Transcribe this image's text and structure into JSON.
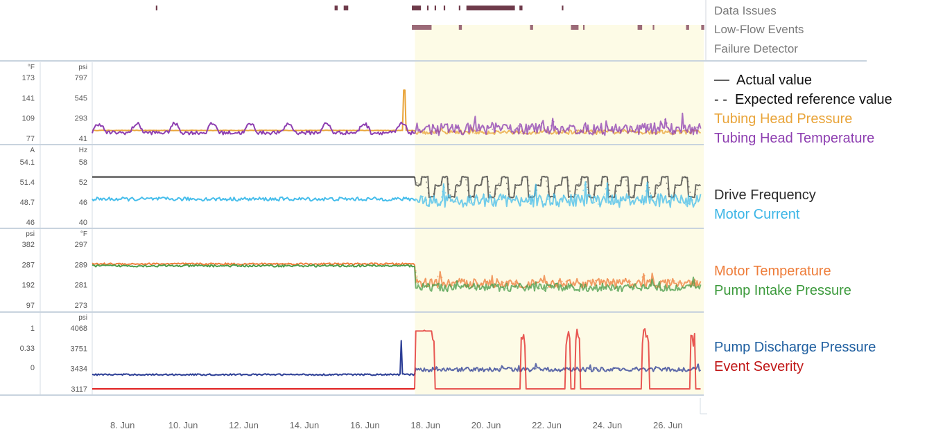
{
  "chart_data": {
    "type": "line",
    "x_ticks": [
      "8. Jun",
      "10. Jun",
      "12. Jun",
      "14. Jun",
      "16. Jun",
      "18. Jun",
      "20. Jun",
      "22. Jun",
      "24. Jun",
      "26. Jun"
    ],
    "x_range": [
      "7 Jun",
      "27 Jun"
    ],
    "highlight_period": {
      "start_day": 17.65,
      "end_day": 27.5,
      "color": "#fdfbe6"
    },
    "event_tracks": [
      {
        "name": "Data Issues",
        "color": "#6e3a4a",
        "intervals": [
          [
            9.1,
            9.15
          ],
          [
            15.0,
            15.1
          ],
          [
            15.3,
            15.45
          ],
          [
            17.55,
            17.85
          ],
          [
            18.05,
            18.1
          ],
          [
            18.3,
            18.35
          ],
          [
            18.6,
            18.65
          ],
          [
            19.1,
            19.15
          ],
          [
            19.35,
            20.95
          ],
          [
            21.1,
            21.2
          ],
          [
            22.5,
            22.55
          ]
        ]
      },
      {
        "name": "Low-Flow Events",
        "color": "#9b6a78",
        "intervals": [
          [
            17.55,
            18.2
          ],
          [
            19.1,
            19.2
          ],
          [
            21.45,
            21.55
          ],
          [
            22.8,
            23.05
          ],
          [
            23.2,
            23.25
          ],
          [
            25.0,
            25.15
          ],
          [
            25.5,
            25.55
          ],
          [
            26.6,
            26.7
          ],
          [
            27.1,
            27.2
          ]
        ]
      },
      {
        "name": "Failure Detector",
        "color": "#9b6a78",
        "intervals": []
      }
    ],
    "panels": [
      {
        "id": "tubing",
        "left_axis": {
          "unit": "°F",
          "ticks": [
            "173",
            "141",
            "109",
            "77"
          ],
          "range": [
            77,
            173
          ]
        },
        "right_axis": {
          "unit": "psi",
          "ticks": [
            "797",
            "545",
            "293",
            "41"
          ],
          "range": [
            41,
            797
          ]
        },
        "series": [
          {
            "name": "Tubing Head Pressure",
            "color": "#e9a53b",
            "axis": "right",
            "baseline": 140,
            "noise_before": 2,
            "noise_after": 28,
            "after_level": 120,
            "spike": {
              "day": 17.3,
              "value": 640
            }
          },
          {
            "name": "Tubing Head Temperature",
            "color": "#8e3fb1",
            "axis": "left",
            "baseline": 86,
            "noise_before": 3,
            "noise_after": 9,
            "after_level": 92,
            "daily_bumps": 8
          }
        ]
      },
      {
        "id": "drive",
        "left_axis": {
          "unit": "A",
          "ticks": [
            "54.1",
            "51.4",
            "48.7",
            "46"
          ],
          "range": [
            46,
            54.1
          ]
        },
        "right_axis": {
          "unit": "Hz",
          "ticks": [
            "58",
            "52",
            "46",
            "40"
          ],
          "range": [
            40,
            58
          ]
        },
        "series": [
          {
            "name": "Drive Frequency",
            "color": "#3d3d3d",
            "axis": "right",
            "baseline": 53.5,
            "after_levels": [
              51,
              53.5,
              47.5
            ]
          },
          {
            "name": "Motor Current",
            "color": "#45bdeb",
            "axis": "left",
            "baseline": 49.1,
            "noise_before": 0.25,
            "noise_after": 0.9,
            "after_level": 48.9
          }
        ]
      },
      {
        "id": "motor",
        "left_axis": {
          "unit": "psi",
          "ticks": [
            "382",
            "287",
            "192",
            "97"
          ],
          "range": [
            97,
            382
          ]
        },
        "right_axis": {
          "unit": "°F",
          "ticks": [
            "297",
            "289",
            "281",
            "273"
          ],
          "range": [
            273,
            297
          ]
        },
        "series": [
          {
            "name": "Motor Temperature",
            "color": "#ee7d3a",
            "axis": "left",
            "baseline": 290,
            "noise_before": 4,
            "noise_after": 22,
            "after_level": 200
          },
          {
            "name": "Pump Intake Pressure",
            "color": "#4a9c4a",
            "axis": "right",
            "baseline": 288.5,
            "noise_before": 0.4,
            "noise_after": 1.6,
            "after_level": 280
          }
        ]
      },
      {
        "id": "pump",
        "left_axis": {
          "unit": "",
          "ticks": [
            "1",
            "0.33",
            "0"
          ],
          "range": [
            0,
            1
          ],
          "color": "#e03030"
        },
        "right_axis": {
          "unit": "psi",
          "ticks": [
            "4068",
            "3751",
            "3434",
            "3117"
          ],
          "range": [
            3117,
            4068
          ]
        },
        "series": [
          {
            "name": "Pump Discharge Pressure",
            "color": "#2c3e96",
            "axis": "right",
            "baseline": 3340,
            "noise_before": 12,
            "noise_after": 35,
            "after_level": 3420,
            "spike": {
              "day": 17.2,
              "value": 3870
            }
          },
          {
            "name": "Event Severity",
            "color": "#e02020",
            "axis": "left",
            "baseline": 0,
            "event_spikes": [
              17.9,
              18.0,
              18.2,
              21.2,
              22.7,
              23.0,
              25.2,
              25.3,
              26.8,
              27.2
            ]
          }
        ]
      }
    ]
  },
  "legend": {
    "actual_label": "Actual value",
    "expected_label": "Expected reference value",
    "actual_symbol": "—",
    "expected_symbol": "- -",
    "groups": [
      [
        {
          "label": "Tubing Head Pressure",
          "color": "#e9a53b"
        },
        {
          "label": "Tubing Head Temperature",
          "color": "#8e3fb1"
        }
      ],
      [
        {
          "label": "Drive Frequency",
          "color": "#2b2b2b"
        },
        {
          "label": "Motor Current",
          "color": "#3bb5e6"
        }
      ],
      [
        {
          "label": "Motor Temperature",
          "color": "#ee7d3a"
        },
        {
          "label": "Pump Intake Pressure",
          "color": "#3c9a3c"
        }
      ],
      [
        {
          "label": "Pump Discharge Pressure",
          "color": "#1f5fa0"
        },
        {
          "label": "Event Severity",
          "color": "#c01515"
        }
      ]
    ]
  }
}
